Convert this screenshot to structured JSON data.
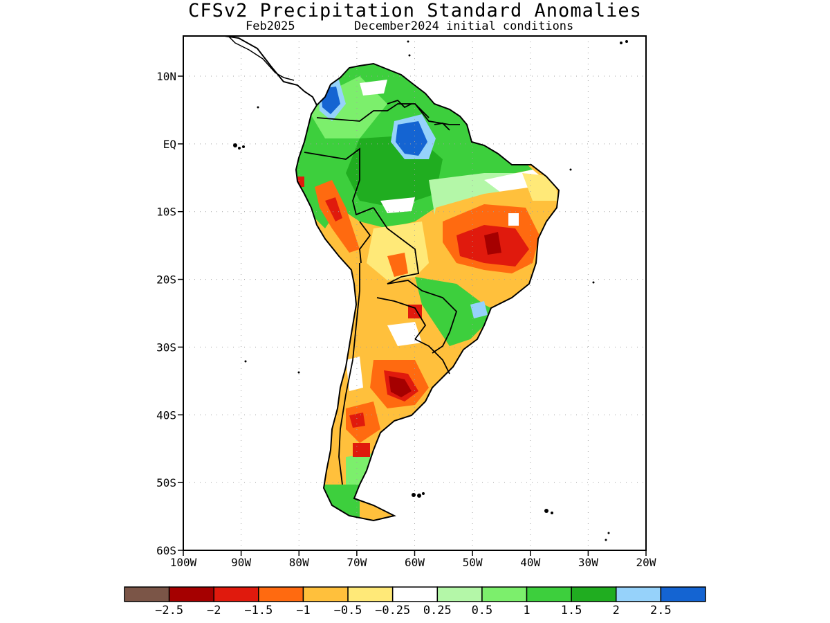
{
  "header": {
    "title": "CFSv2 Precipitation Standard Anomalies",
    "valid_month": "Feb2025",
    "init": "December2024 initial conditions"
  },
  "axes": {
    "lat_ticks": [
      "10N",
      "EQ",
      "10S",
      "20S",
      "30S",
      "40S",
      "50S",
      "60S"
    ],
    "lon_ticks": [
      "100W",
      "90W",
      "80W",
      "70W",
      "60W",
      "50W",
      "40W",
      "30W",
      "20W"
    ]
  },
  "colorbar": {
    "colors": [
      "#7b5547",
      "#a50000",
      "#e01a0d",
      "#ff6a10",
      "#ffc03c",
      "#ffe978",
      "#ffffff",
      "#b4f7a8",
      "#7cef6c",
      "#3dcf3d",
      "#20ad20",
      "#96d2fa",
      "#1464d2"
    ],
    "labels": [
      "-2.5",
      "-2",
      "-1.5",
      "-1",
      "-0.5",
      "-0.25",
      "0.25",
      "0.5",
      "1",
      "1.5",
      "2",
      "2.5"
    ]
  },
  "map_colors": {
    "land_outline": "#000000",
    "grid": "#a0a0a0"
  }
}
